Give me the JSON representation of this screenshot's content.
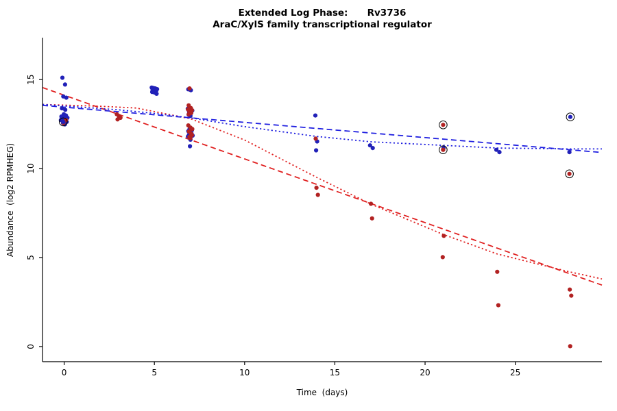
{
  "chart_data": {
    "type": "scatter",
    "title": "Extended Log Phase:      Rv3736",
    "subtitle": "AraC/XylS family transcriptional regulator",
    "xlabel": "Time  (days)",
    "ylabel": "Abundance  (log2 RPMHEG)",
    "xlim": [
      -1.2,
      29.8
    ],
    "ylim": [
      -0.85,
      17.35
    ],
    "xticks": [
      0,
      5,
      10,
      15,
      20,
      25
    ],
    "yticks": [
      0,
      5,
      10,
      15
    ],
    "grid": false,
    "legend": "none",
    "series": [
      {
        "name": "blue-series",
        "color": "#2121b8",
        "points": [
          [
            -0.1,
            15.1
          ],
          [
            0.05,
            14.72
          ],
          [
            -0.05,
            14.05
          ],
          [
            0.12,
            13.98
          ],
          [
            -0.12,
            13.38
          ],
          [
            0.06,
            13.3
          ],
          [
            -0.02,
            13.05
          ],
          [
            0.1,
            12.98
          ],
          [
            -0.15,
            12.92
          ],
          [
            0.03,
            12.88
          ],
          [
            0.18,
            12.85
          ],
          [
            -0.08,
            12.8
          ],
          [
            0.08,
            12.75
          ],
          [
            -0.18,
            12.72
          ],
          [
            0.0,
            12.68
          ],
          [
            0.14,
            12.62
          ],
          [
            -0.06,
            12.55
          ],
          [
            0.04,
            12.48
          ],
          [
            3.05,
            12.92
          ],
          [
            4.85,
            14.55
          ],
          [
            4.95,
            14.52
          ],
          [
            5.05,
            14.5
          ],
          [
            5.15,
            14.46
          ],
          [
            4.9,
            14.42
          ],
          [
            5.0,
            14.4
          ],
          [
            5.1,
            14.36
          ],
          [
            4.88,
            14.3
          ],
          [
            5.02,
            14.26
          ],
          [
            5.12,
            14.2
          ],
          [
            6.88,
            14.45
          ],
          [
            7.02,
            14.4
          ],
          [
            6.85,
            13.36
          ],
          [
            6.98,
            13.3
          ],
          [
            7.1,
            13.26
          ],
          [
            6.92,
            13.2
          ],
          [
            7.04,
            13.12
          ],
          [
            6.9,
            13.02
          ],
          [
            7.0,
            12.96
          ],
          [
            6.95,
            12.22
          ],
          [
            7.08,
            12.16
          ],
          [
            6.88,
            12.1
          ],
          [
            7.0,
            12.02
          ],
          [
            7.06,
            11.96
          ],
          [
            6.92,
            11.9
          ],
          [
            7.12,
            11.85
          ],
          [
            6.86,
            11.8
          ],
          [
            7.0,
            11.62
          ],
          [
            6.97,
            11.25
          ],
          [
            13.92,
            12.98
          ],
          [
            14.02,
            11.52
          ],
          [
            13.96,
            11.02
          ],
          [
            16.95,
            11.3
          ],
          [
            17.1,
            11.15
          ],
          [
            21.02,
            11.15
          ],
          [
            23.95,
            11.05
          ],
          [
            24.12,
            10.92
          ],
          [
            28.0,
            10.92
          ]
        ]
      },
      {
        "name": "red-series",
        "color": "#b22222",
        "points": [
          [
            0.1,
            12.72
          ],
          [
            -0.04,
            12.56
          ],
          [
            2.92,
            13.05
          ],
          [
            3.04,
            12.95
          ],
          [
            3.12,
            12.85
          ],
          [
            2.96,
            12.76
          ],
          [
            6.95,
            14.5
          ],
          [
            6.9,
            13.55
          ],
          [
            7.02,
            13.4
          ],
          [
            6.86,
            13.32
          ],
          [
            7.08,
            13.28
          ],
          [
            6.94,
            13.2
          ],
          [
            7.04,
            13.12
          ],
          [
            6.9,
            13.04
          ],
          [
            6.88,
            12.42
          ],
          [
            7.0,
            12.3
          ],
          [
            7.1,
            12.22
          ],
          [
            6.92,
            12.08
          ],
          [
            7.02,
            11.98
          ],
          [
            7.08,
            11.88
          ],
          [
            6.94,
            11.78
          ],
          [
            7.0,
            11.7
          ],
          [
            13.94,
            11.68
          ],
          [
            13.98,
            8.92
          ],
          [
            14.06,
            8.52
          ],
          [
            17.0,
            8.02
          ],
          [
            17.06,
            7.2
          ],
          [
            21.0,
            11.05
          ],
          [
            21.04,
            6.22
          ],
          [
            20.98,
            5.02
          ],
          [
            24.0,
            4.2
          ],
          [
            24.06,
            2.32
          ],
          [
            28.02,
            3.2
          ],
          [
            28.1,
            2.86
          ],
          [
            28.04,
            0.02
          ]
        ]
      }
    ],
    "flagged_points": [
      {
        "x": -0.05,
        "y": 12.62,
        "color": "#2121b8"
      },
      {
        "x": 21.0,
        "y": 12.45,
        "color": "#b22222"
      },
      {
        "x": 21.0,
        "y": 11.05,
        "color": "#b22222"
      },
      {
        "x": 28.05,
        "y": 12.9,
        "color": "#2121b8"
      },
      {
        "x": 28.0,
        "y": 9.7,
        "color": "#b22222"
      }
    ],
    "trend_lines": [
      {
        "name": "red-linear-fit-dashed",
        "color": "#e02020",
        "style": "dashed",
        "points": [
          [
            -1.2,
            14.55
          ],
          [
            29.8,
            3.45
          ]
        ]
      },
      {
        "name": "red-smooth-fit-dotted",
        "color": "#e02020",
        "style": "dotted",
        "points": [
          [
            -1.2,
            13.6
          ],
          [
            2,
            13.5
          ],
          [
            4,
            13.4
          ],
          [
            7,
            12.8
          ],
          [
            10,
            11.6
          ],
          [
            14,
            9.5
          ],
          [
            17,
            8.0
          ],
          [
            21,
            6.3
          ],
          [
            24,
            5.2
          ],
          [
            28,
            4.2
          ],
          [
            29.8,
            3.8
          ]
        ]
      },
      {
        "name": "blue-linear-fit-dashed",
        "color": "#2020e0",
        "style": "dashed",
        "points": [
          [
            -1.2,
            13.55
          ],
          [
            29.8,
            10.9
          ]
        ]
      },
      {
        "name": "blue-smooth-fit-dotted",
        "color": "#2020e0",
        "style": "dotted",
        "points": [
          [
            -1.2,
            13.6
          ],
          [
            3,
            13.3
          ],
          [
            5,
            13.1
          ],
          [
            7,
            12.85
          ],
          [
            10,
            12.35
          ],
          [
            14,
            11.8
          ],
          [
            17,
            11.5
          ],
          [
            21,
            11.3
          ],
          [
            24,
            11.15
          ],
          [
            28,
            11.1
          ],
          [
            29.8,
            11.1
          ]
        ]
      }
    ],
    "axis_color": "#000000"
  }
}
